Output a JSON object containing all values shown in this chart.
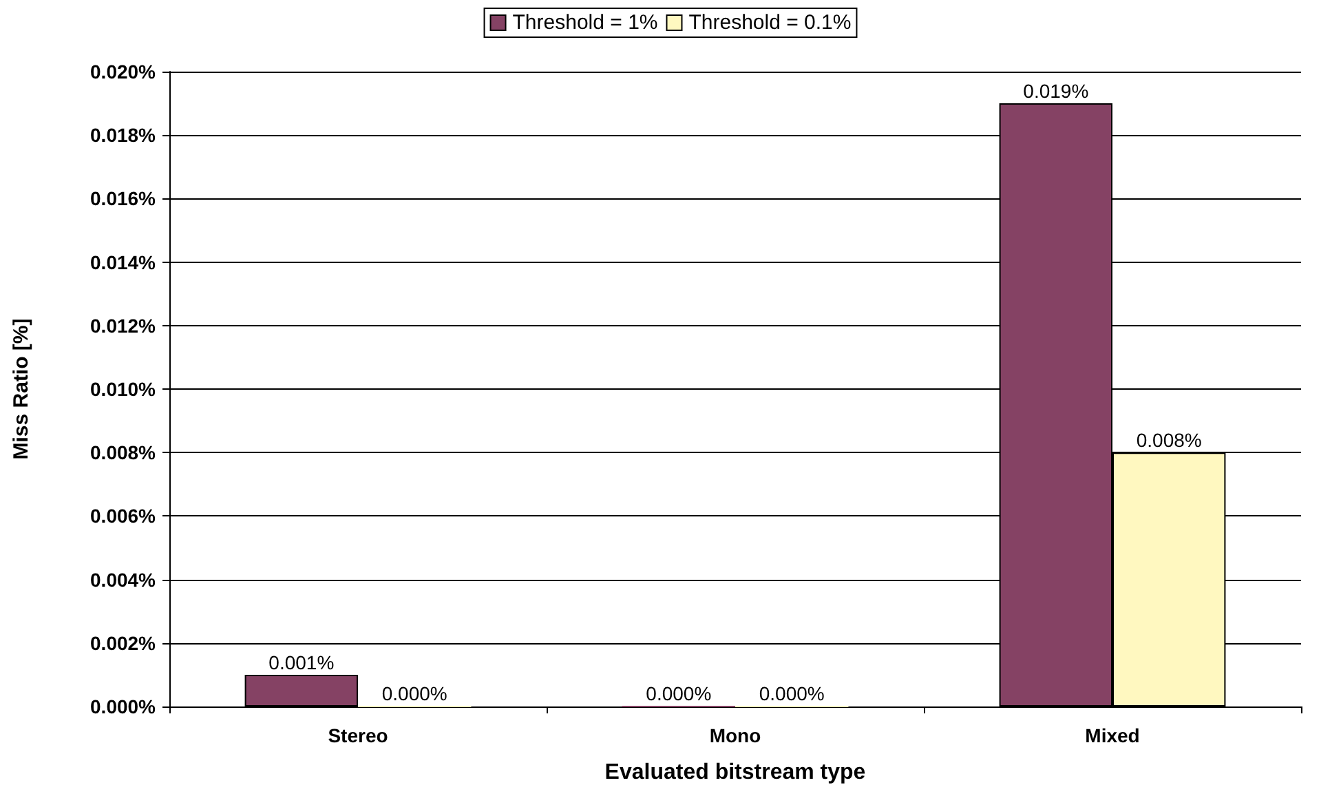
{
  "chart_data": {
    "type": "bar",
    "xlabel": "Evaluated bitstream type",
    "ylabel": "Miss Ratio [%]",
    "categories": [
      "Stereo",
      "Mono",
      "Mixed"
    ],
    "series": [
      {
        "name": "Threshold = 1%",
        "color": "#854264",
        "values": [
          0.001,
          0,
          0.019
        ],
        "value_labels": [
          "0.001%",
          "0.000%",
          "0.019%"
        ]
      },
      {
        "name": "Threshold = 0.1%",
        "color": "#fff8c0",
        "values": [
          0,
          0,
          0.008
        ],
        "value_labels": [
          "0.000%",
          "0.000%",
          "0.008%"
        ]
      }
    ],
    "ylim": [
      0,
      0.02
    ],
    "yticks": [
      {
        "value": 0,
        "label": "0.000%"
      },
      {
        "value": 0.002,
        "label": "0.002%"
      },
      {
        "value": 0.004,
        "label": "0.004%"
      },
      {
        "value": 0.006,
        "label": "0.006%"
      },
      {
        "value": 0.008,
        "label": "0.008%"
      },
      {
        "value": 0.01,
        "label": "0.010%"
      },
      {
        "value": 0.012,
        "label": "0.012%"
      },
      {
        "value": 0.014,
        "label": "0.014%"
      },
      {
        "value": 0.016,
        "label": "0.016%"
      },
      {
        "value": 0.018,
        "label": "0.018%"
      },
      {
        "value": 0.02,
        "label": "0.020%"
      }
    ],
    "grid": "y",
    "legend": "top"
  }
}
